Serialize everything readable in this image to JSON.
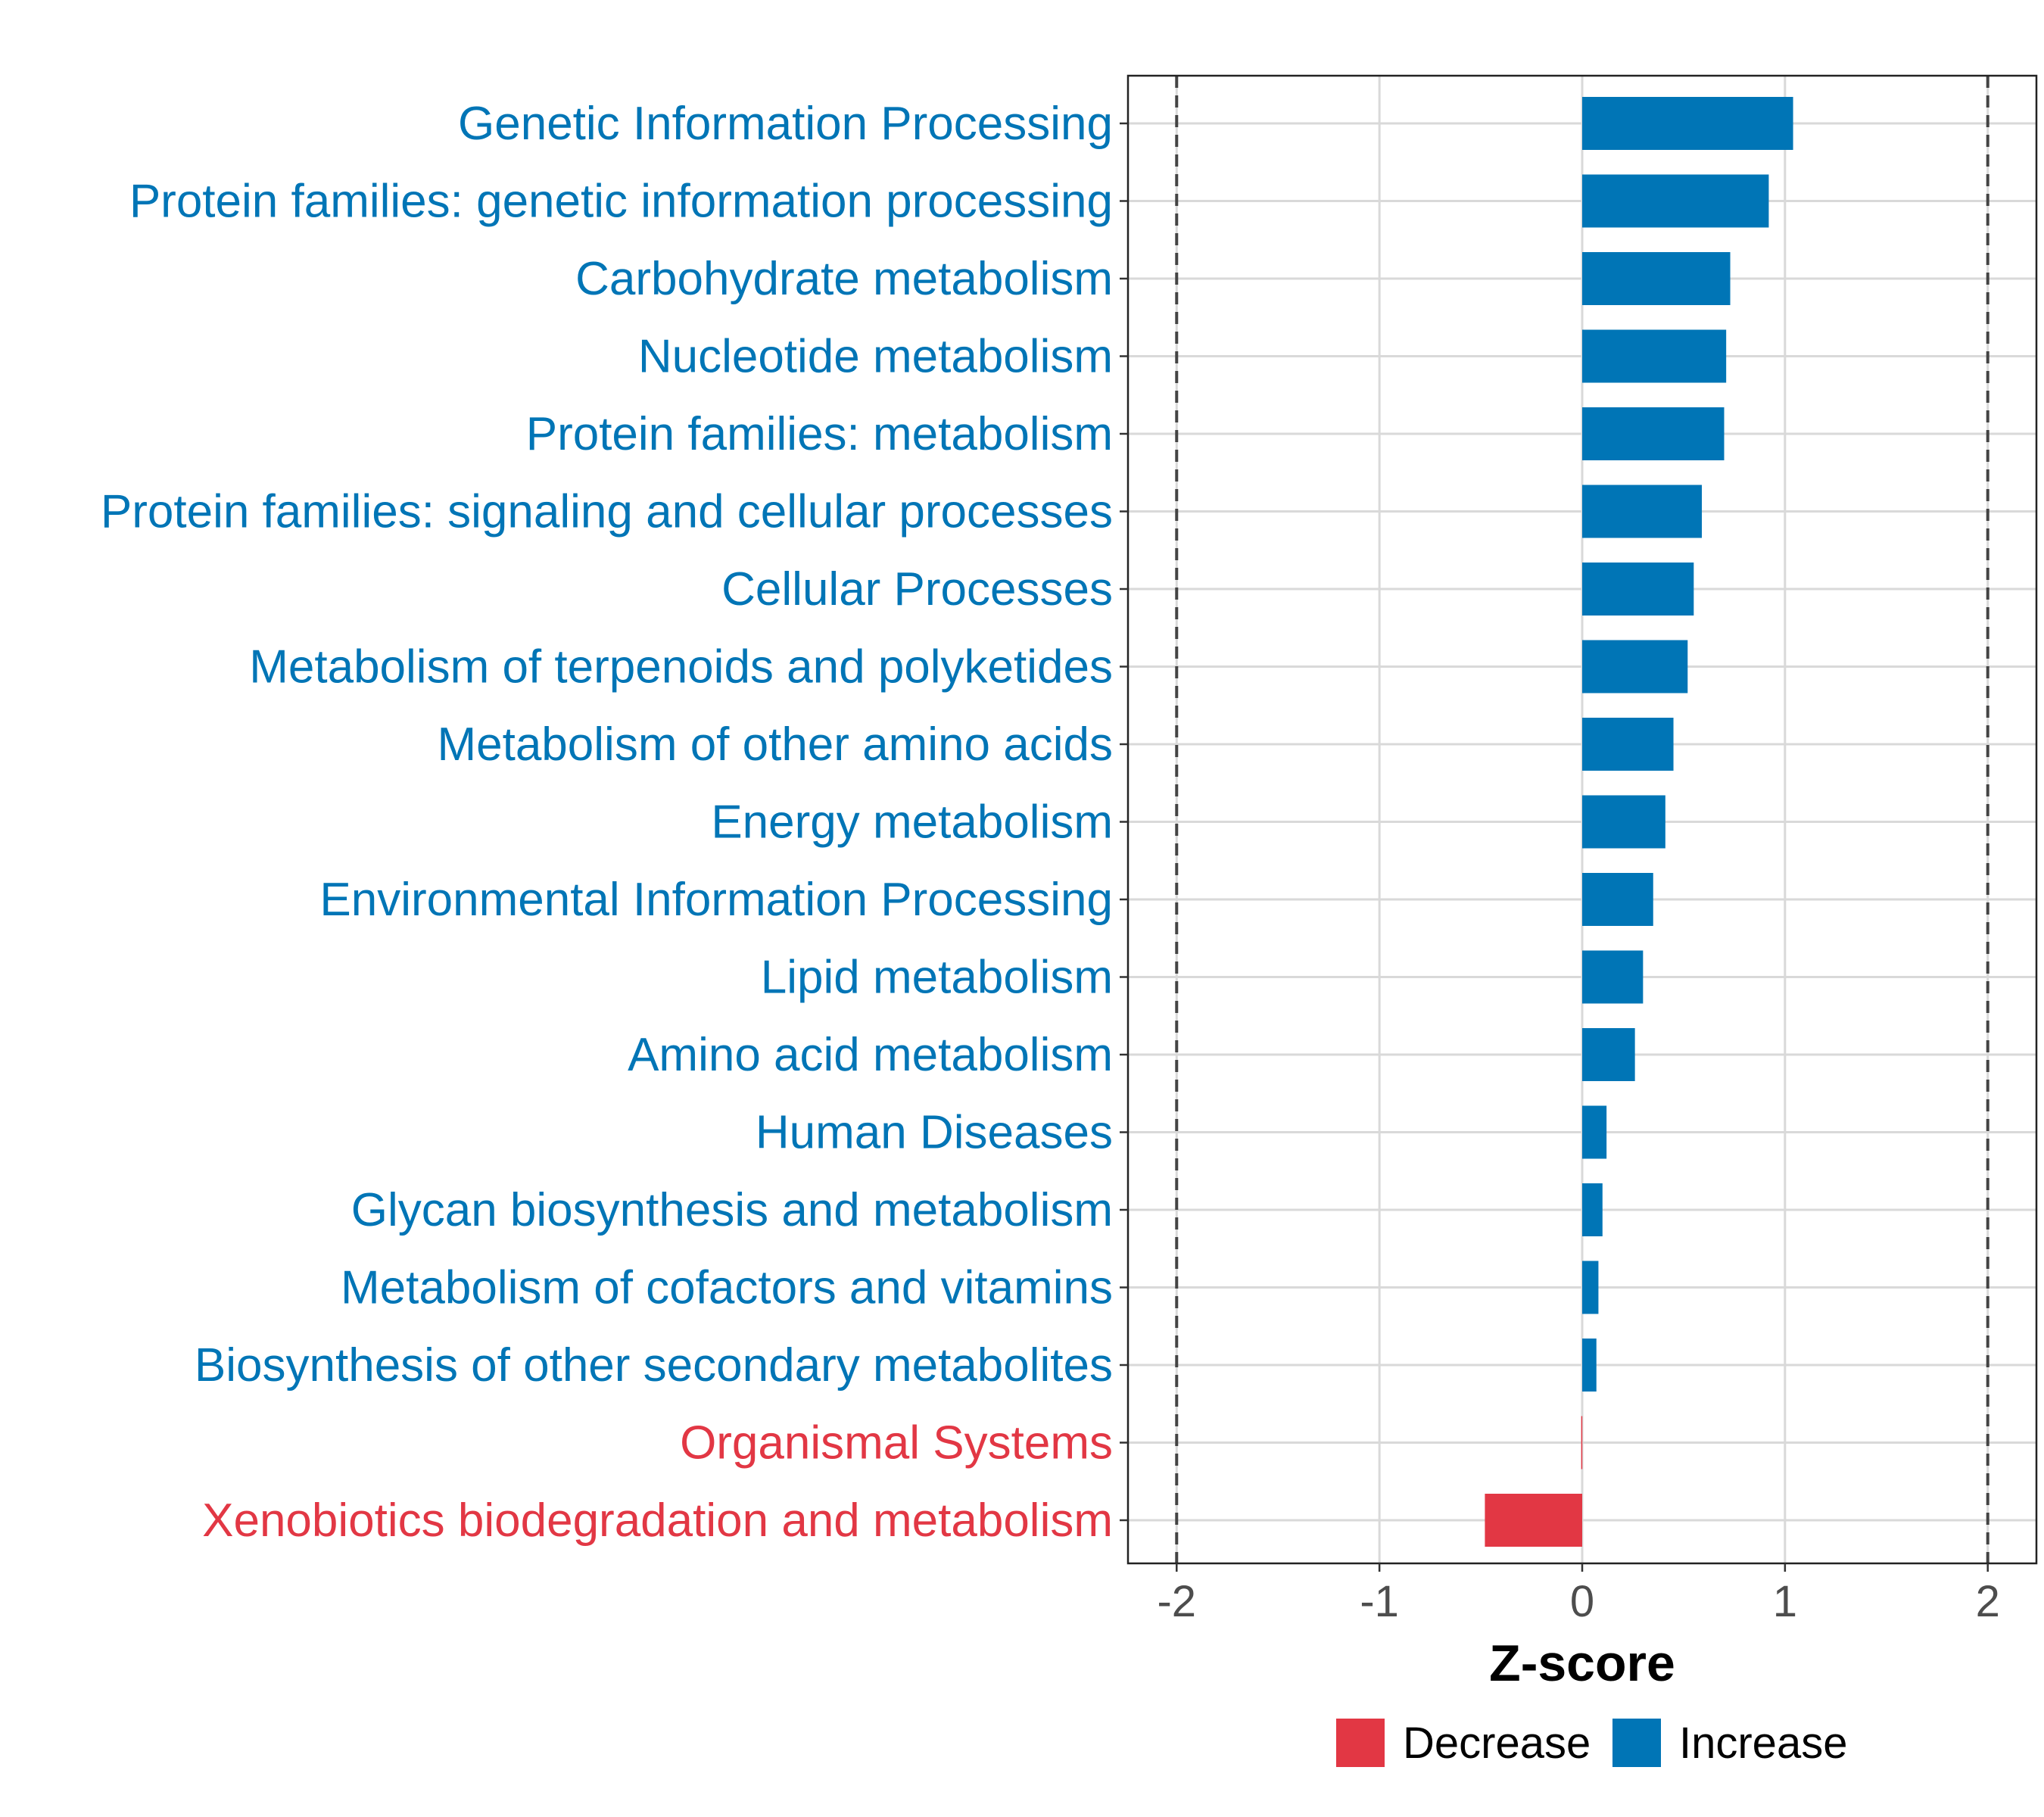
{
  "chart_data": {
    "type": "bar",
    "orientation": "horizontal",
    "title": "",
    "xlabel": "Z-score",
    "ylabel": "",
    "xlim": [
      -2.24,
      2.24
    ],
    "xticks": [
      -2,
      -1,
      0,
      1,
      2
    ],
    "xtick_labels": [
      "-2",
      "-1",
      "0",
      "1",
      "2"
    ],
    "reference_lines": [
      -2,
      2
    ],
    "grid": true,
    "legend_position": "bottom",
    "categories": [
      "Genetic Information Processing",
      "Protein families: genetic information processing",
      "Carbohydrate metabolism",
      "Nucleotide metabolism",
      "Protein families: metabolism",
      "Protein families: signaling and cellular processes",
      "Cellular Processes",
      "Metabolism of terpenoids and polyketides",
      "Metabolism of other amino acids",
      "Energy metabolism",
      "Environmental Information Processing",
      "Lipid metabolism",
      "Amino acid metabolism",
      "Human Diseases",
      "Glycan biosynthesis and metabolism",
      "Metabolism of cofactors and vitamins",
      "Biosynthesis of other secondary metabolites",
      "Organismal Systems",
      "Xenobiotics biodegradation and metabolism"
    ],
    "values": [
      1.04,
      0.92,
      0.73,
      0.71,
      0.7,
      0.59,
      0.55,
      0.52,
      0.45,
      0.41,
      0.35,
      0.3,
      0.26,
      0.12,
      0.1,
      0.08,
      0.07,
      -0.005,
      -0.48
    ],
    "groups": [
      "Increase",
      "Increase",
      "Increase",
      "Increase",
      "Increase",
      "Increase",
      "Increase",
      "Increase",
      "Increase",
      "Increase",
      "Increase",
      "Increase",
      "Increase",
      "Increase",
      "Increase",
      "Increase",
      "Increase",
      "Decrease",
      "Decrease"
    ],
    "legend": [
      {
        "label": "Decrease",
        "color": "#e23744"
      },
      {
        "label": "Increase",
        "color": "#0075b6"
      }
    ]
  },
  "colors": {
    "increase": "#0075b6",
    "decrease": "#e23744",
    "grid": "#d9d9d9",
    "reference_line": "#444444"
  }
}
